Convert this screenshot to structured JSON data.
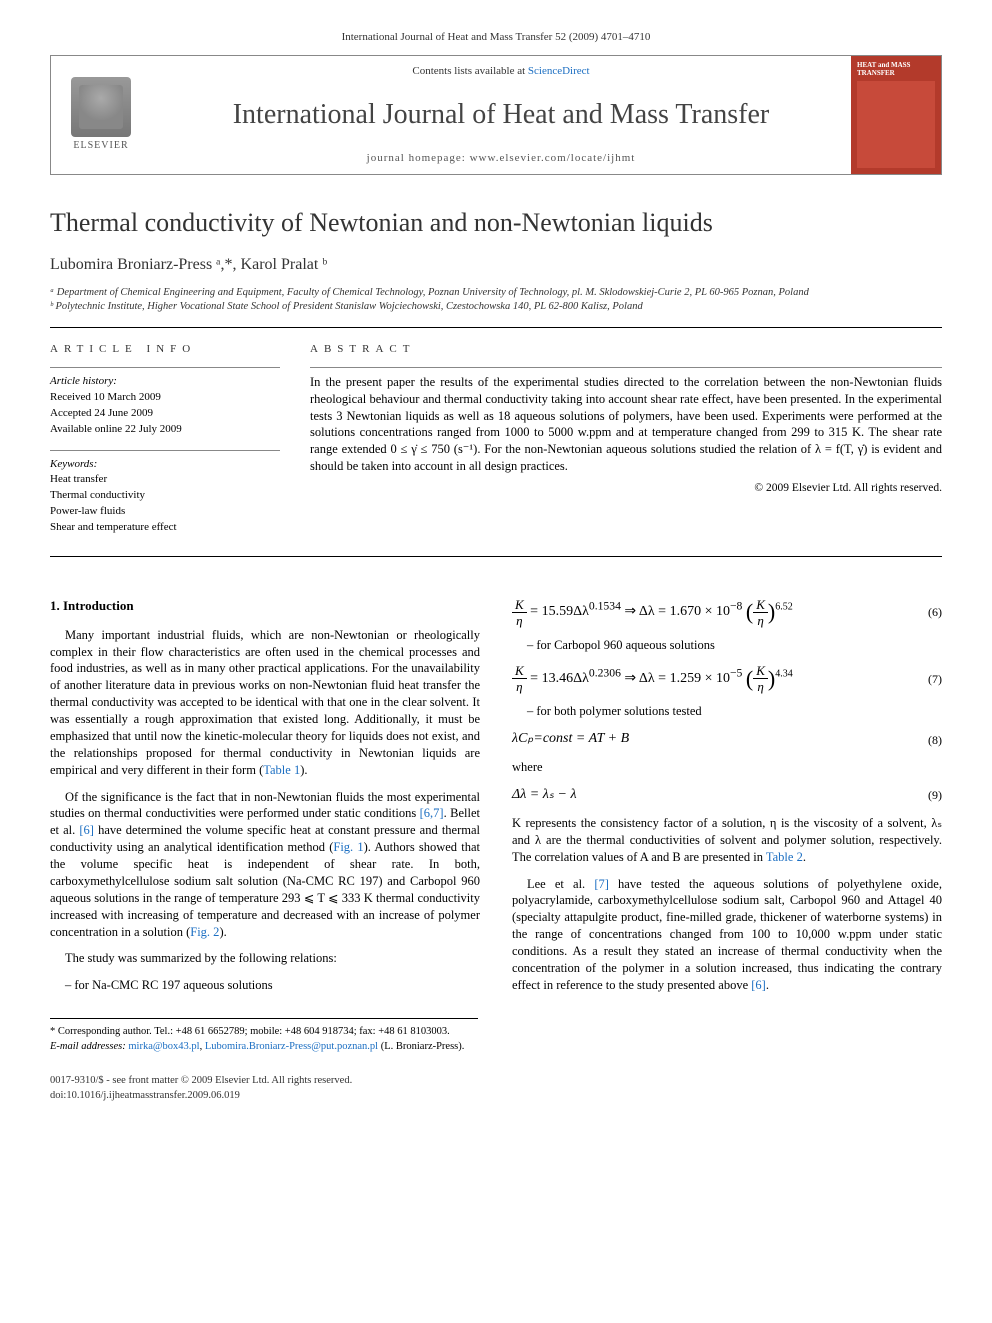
{
  "header": {
    "running_head": "International Journal of Heat and Mass Transfer 52 (2009) 4701–4710"
  },
  "banner": {
    "publisher": "ELSEVIER",
    "contents_prefix": "Contents lists available at ",
    "contents_link": "ScienceDirect",
    "journal_name": "International Journal of Heat and Mass Transfer",
    "homepage_label": "journal homepage: www.elsevier.com/locate/ijhmt",
    "cover_title": "HEAT and MASS TRANSFER"
  },
  "article": {
    "title": "Thermal conductivity of Newtonian and non-Newtonian liquids",
    "authors": "Lubomira Broniarz-Press ᵃ,*, Karol Pralat ᵇ",
    "affiliations": {
      "a": "ᵃ Department of Chemical Engineering and Equipment, Faculty of Chemical Technology, Poznan University of Technology, pl. M. Sklodowskiej-Curie 2, PL 60-965 Poznan, Poland",
      "b": "ᵇ Polytechnic Institute, Higher Vocational State School of President Stanislaw Wojciechowski, Czestochowska 140, PL 62-800 Kalisz, Poland"
    }
  },
  "info": {
    "section_label": "ARTICLE INFO",
    "history_head": "Article history:",
    "received": "Received 10 March 2009",
    "accepted": "Accepted 24 June 2009",
    "online": "Available online 22 July 2009",
    "keywords_head": "Keywords:",
    "kw1": "Heat transfer",
    "kw2": "Thermal conductivity",
    "kw3": "Power-law fluids",
    "kw4": "Shear and temperature effect"
  },
  "abstract": {
    "section_label": "ABSTRACT",
    "text": "In the present paper the results of the experimental studies directed to the correlation between the non-Newtonian fluids rheological behaviour and thermal conductivity taking into account shear rate effect, have been presented. In the experimental tests 3 Newtonian liquids as well as 18 aqueous solutions of polymers, have been used. Experiments were performed at the solutions concentrations ranged from 1000 to 5000 w.ppm and at temperature changed from 299 to 315 K. The shear rate range extended 0 ≤ γ̇ ≤ 750 (s⁻¹). For the non-Newtonian aqueous solutions studied the relation of λ = f(T, γ̇) is evident and should be taken into account in all design practices.",
    "copyright": "© 2009 Elsevier Ltd. All rights reserved."
  },
  "body": {
    "intro_head": "1. Introduction",
    "p1": "Many important industrial fluids, which are non-Newtonian or rheologically complex in their flow characteristics are often used in the chemical processes and food industries, as well as in many other practical applications. For the unavailability of another literature data in previous works on non-Newtonian fluid heat transfer the thermal conductivity was accepted to be identical with that one in the clear solvent. It was essentially a rough approximation that existed long. Additionally, it must be emphasized that until now the kinetic-molecular theory for liquids does not exist, and the relationships proposed for thermal conductivity in Newtonian liquids are empirical and very different in their form (",
    "p1_link": "Table 1",
    "p1_end": ").",
    "p2a": "Of the significance is the fact that in non-Newtonian fluids the most experimental studies on thermal conductivities were performed under static conditions ",
    "p2_ref1": "[6,7]",
    "p2b": ". Bellet et al. ",
    "p2_ref2": "[6]",
    "p2c": " have determined the volume specific heat at constant pressure and thermal conductivity using an analytical identification method (",
    "p2_fig": "Fig. 1",
    "p2d": "). Authors showed that the volume specific heat is independent of shear rate. In both, carboxymethylcellulose sodium salt solution (Na-CMC RC 197) and Carbopol 960 aqueous solutions in the range of temperature 293 ⩽ T ⩽ 333 K thermal conductivity increased with increasing of temperature and decreased with an increase of polymer concentration in a solution (",
    "p2_fig2": "Fig. 2",
    "p2e": ").",
    "p3": "The study was summarized by the following relations:",
    "eq6_label": "– for Na-CMC RC 197 aqueous solutions",
    "eq6_num": "(6)",
    "eq7_label": "– for Carbopol 960 aqueous solutions",
    "eq7_num": "(7)",
    "eq8_label": "– for both polymer solutions tested",
    "eq8": "λCₚ=const = AT + B",
    "eq8_num": "(8)",
    "where": "where",
    "eq9": "Δλ = λₛ − λ",
    "eq9_num": "(9)",
    "p4a": "K represents the consistency factor of a solution, η is the viscosity of a solvent, λₛ and λ are the thermal conductivities of solvent and polymer solution, respectively. The correlation values of A and B are presented in ",
    "p4_link": "Table 2",
    "p4b": ".",
    "p5a": "Lee et al. ",
    "p5_ref": "[7]",
    "p5b": " have tested the aqueous solutions of polyethylene oxide, polyacrylamide, carboxymethylcellulose sodium salt, Carbopol 960 and Attagel 40 (specialty attapulgite product, fine-milled grade, thickener of waterborne systems) in the range of concentrations changed from 100 to 10,000 w.ppm under static conditions. As a result they stated an increase of thermal conductivity when the concentration of the polymer in a solution increased, thus indicating the contrary effect in reference to the study presented above ",
    "p5_ref2": "[6]",
    "p5c": "."
  },
  "footnotes": {
    "corr": "* Corresponding author. Tel.: +48 61 6652789; mobile: +48 604 918734; fax: +48 61 8103003.",
    "email_label": "E-mail addresses: ",
    "email1": "mirka@box43.pl",
    "email_sep": ", ",
    "email2": "Lubomira.Broniarz-Press@put.poznan.pl",
    "email_who": " (L. Broniarz-Press)."
  },
  "footer": {
    "line1": "0017-9310/$ - see front matter © 2009 Elsevier Ltd. All rights reserved.",
    "line2": "doi:10.1016/j.ijheatmasstransfer.2009.06.019"
  },
  "colors": {
    "link": "#1b6ec2",
    "cover": "#b33a2b"
  }
}
